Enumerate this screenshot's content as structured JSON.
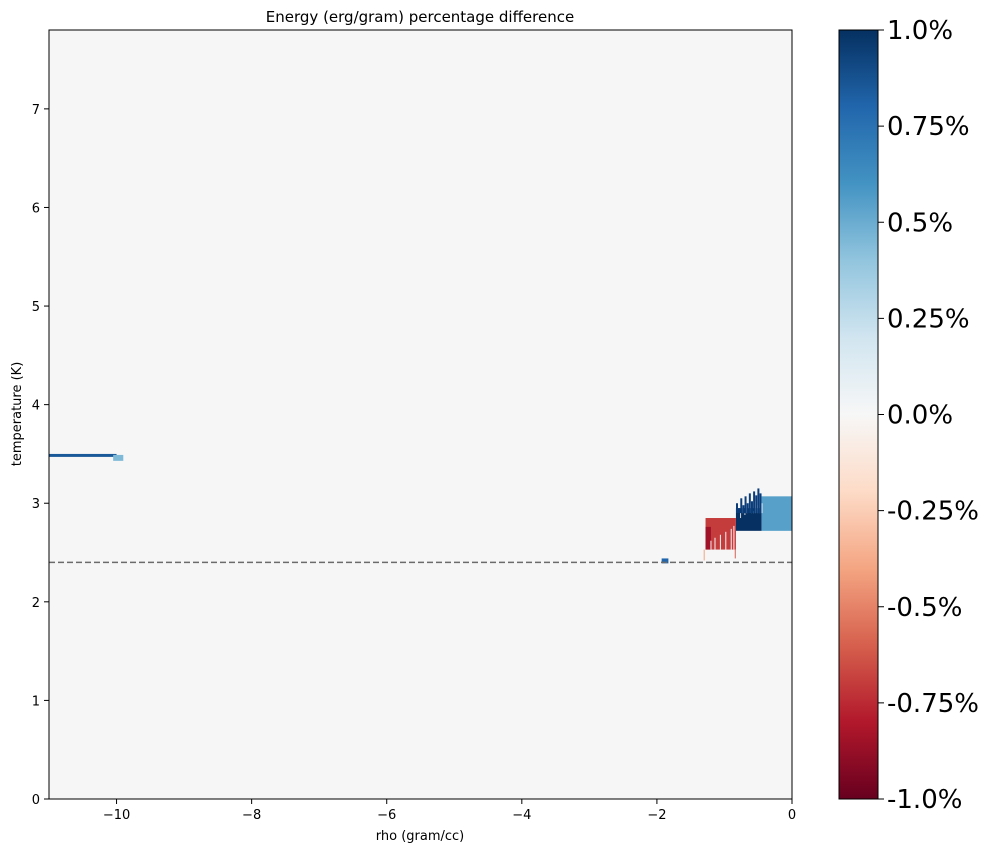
{
  "chart_data": {
    "type": "heatmap",
    "title": "Energy (erg/gram) percentage difference",
    "xlabel": "rho (gram/cc)",
    "ylabel": "temperature (K)",
    "xlim": [
      -11,
      0
    ],
    "ylim": [
      0,
      7.8
    ],
    "xticks": [
      -10,
      -8,
      -6,
      -4,
      -2,
      0
    ],
    "xtick_labels": [
      "−10",
      "−8",
      "−6",
      "−4",
      "−2",
      "0"
    ],
    "yticks": [
      0,
      1,
      2,
      3,
      4,
      5,
      6,
      7
    ],
    "ytick_labels": [
      "0",
      "1",
      "2",
      "3",
      "4",
      "5",
      "6",
      "7"
    ],
    "background_value_percent": 0.0,
    "grid": false,
    "reference_line": {
      "y": 2.4,
      "style": "dashed",
      "color": "#6b6b6b"
    },
    "colormap": "RdBu",
    "color_range_percent": [
      -1.0,
      1.0
    ],
    "colorbar": {
      "ticks": [
        1.0,
        0.75,
        0.5,
        0.25,
        0.0,
        -0.25,
        -0.5,
        -0.75,
        -1.0
      ],
      "tick_labels": [
        "1.0%",
        "0.75%",
        "0.5%",
        "0.25%",
        "0.0%",
        "-0.25%",
        "-0.5%",
        "-0.75%",
        "-1.0%"
      ]
    },
    "regions": [
      {
        "x": [
          -11.0,
          -10.0
        ],
        "y": [
          3.47,
          3.5
        ],
        "value": 0.85
      },
      {
        "x": [
          -10.05,
          -9.9
        ],
        "y": [
          3.43,
          3.49
        ],
        "value": 0.45
      },
      {
        "x": [
          -1.93,
          -1.83
        ],
        "y": [
          2.39,
          2.44
        ],
        "value": 0.8
      },
      {
        "x": [
          -0.83,
          -0.45
        ],
        "y": [
          2.72,
          2.95
        ],
        "value": 1.0
      },
      {
        "x": [
          -0.45,
          0.0
        ],
        "y": [
          2.72,
          3.07
        ],
        "value": 0.55
      },
      {
        "x": [
          -1.28,
          -0.83
        ],
        "y": [
          2.53,
          2.85
        ],
        "value": -0.7
      },
      {
        "x": [
          -1.28,
          -1.2
        ],
        "y": [
          2.53,
          2.76
        ],
        "value": -0.85
      }
    ]
  },
  "colors": {
    "background": "#f6f6f6",
    "dark_blue": "#0a3c7a",
    "mid_blue": "#1f63a8",
    "light_blue": "#5fa5cf",
    "red": "#cc4a3f",
    "dark_red": "#b2272a"
  }
}
